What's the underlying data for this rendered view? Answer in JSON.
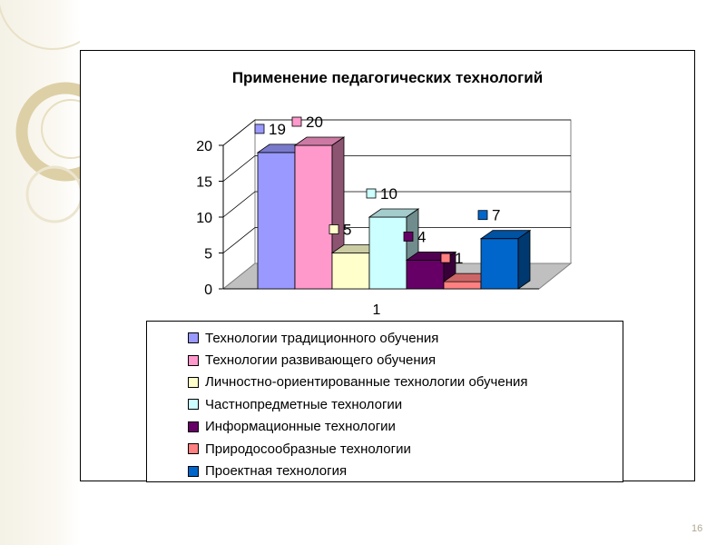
{
  "slide": {
    "number": "16"
  },
  "chart_data": {
    "type": "bar",
    "title": "Применение педагогических технологий",
    "categories": [
      "1"
    ],
    "ylim": [
      0,
      20
    ],
    "yticks": [
      "0",
      "5",
      "10",
      "15",
      "20"
    ],
    "grid": true,
    "legend_position": "bottom",
    "series": [
      {
        "name": "Технологии традиционного обучения",
        "values": [
          19
        ],
        "color": "#9999ff",
        "label": "19"
      },
      {
        "name": "Технологии развивающего обучения",
        "values": [
          20
        ],
        "color": "#ff99cc",
        "label": "20"
      },
      {
        "name": "Личностно-ориентированные технологии обучения",
        "values": [
          5
        ],
        "color": "#ffffcc",
        "label": "5"
      },
      {
        "name": "Частнопредметные технологии",
        "values": [
          10
        ],
        "color": "#ccffff",
        "label": "10"
      },
      {
        "name": "Информационные технологии",
        "values": [
          4
        ],
        "color": "#660066",
        "label": "4"
      },
      {
        "name": "Природосообразные технологии",
        "values": [
          1
        ],
        "color": "#ff8080",
        "label": "1"
      },
      {
        "name": "Проектная технология",
        "values": [
          7
        ],
        "color": "#0066cc",
        "label": "7"
      }
    ]
  }
}
